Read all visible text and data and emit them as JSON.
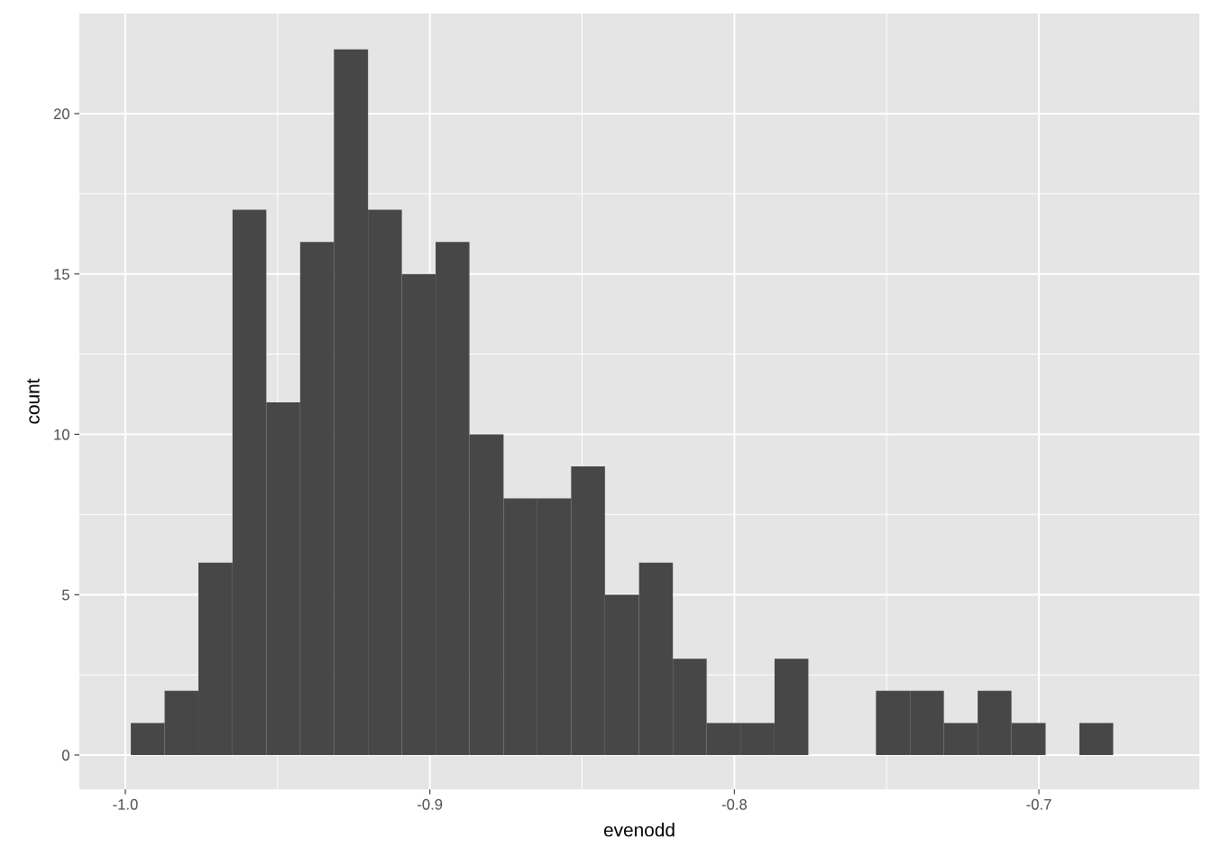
{
  "chart_data": {
    "type": "histogram",
    "xlabel": "evenodd",
    "ylabel": "count",
    "bins": [
      -0.9982,
      -0.9871,
      -0.976,
      -0.9648,
      -0.9537,
      -0.9426,
      -0.9315,
      -0.9203,
      -0.9092,
      -0.8981,
      -0.887,
      -0.8758,
      -0.8647,
      -0.8536,
      -0.8425,
      -0.8313,
      -0.8202,
      -0.8091,
      -0.798,
      -0.7868,
      -0.7757,
      -0.7646,
      -0.7535,
      -0.7423,
      -0.7312,
      -0.7201,
      -0.709,
      -0.6978,
      -0.6867,
      -0.6756,
      -0.6645
    ],
    "values": [
      1,
      2,
      6,
      17,
      11,
      16,
      22,
      17,
      15,
      16,
      10,
      8,
      8,
      9,
      5,
      6,
      3,
      1,
      1,
      3,
      0,
      0,
      2,
      2,
      1,
      2,
      1,
      0,
      1,
      0
    ],
    "color": "#474747",
    "xlim": [
      -1.0151,
      -0.6473
    ],
    "ylim": [
      -1.07,
      23.12
    ],
    "xticks": [
      {
        "value": -1.0,
        "label": "-1.0"
      },
      {
        "value": -0.9,
        "label": "-0.9"
      },
      {
        "value": -0.8,
        "label": "-0.8"
      },
      {
        "value": -0.7,
        "label": "-0.7"
      }
    ],
    "yticks": [
      0,
      5,
      10,
      15,
      20
    ],
    "grid": true
  }
}
